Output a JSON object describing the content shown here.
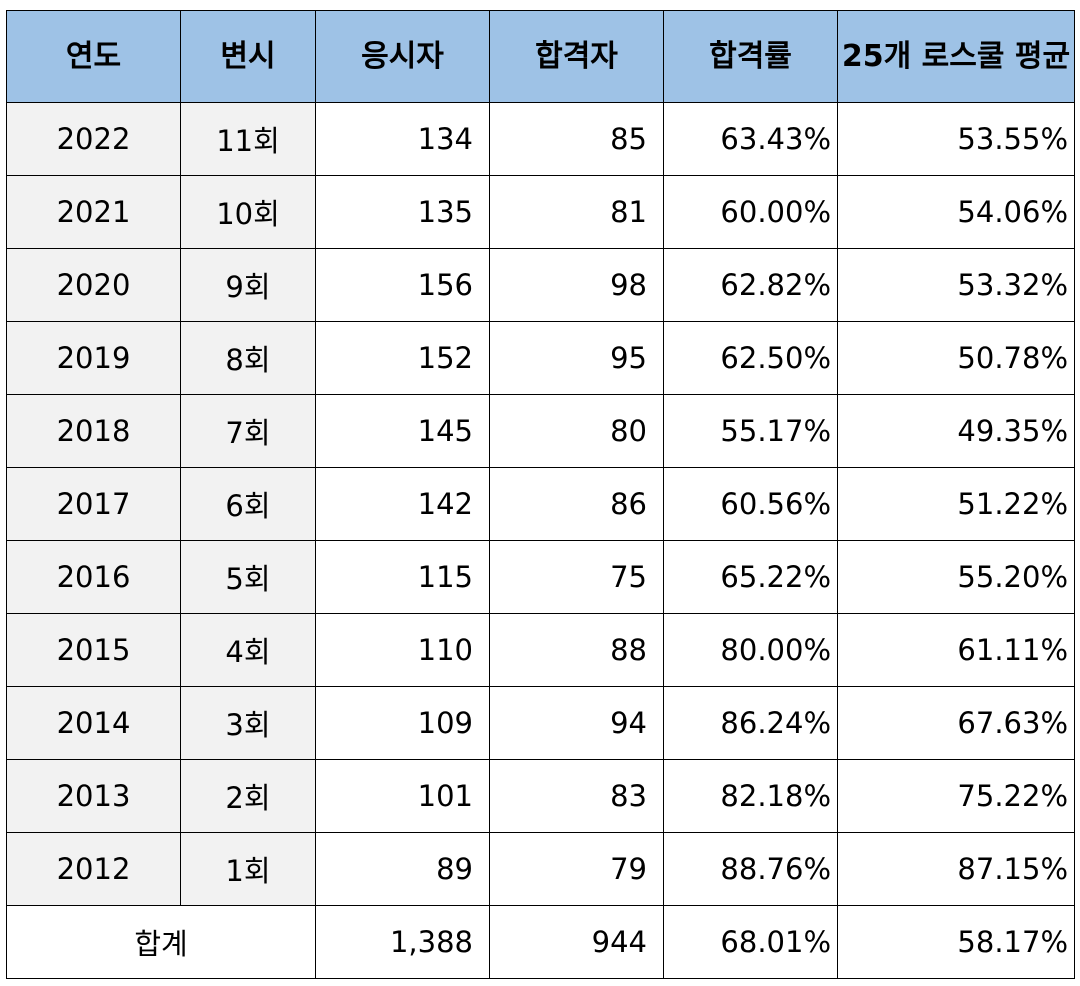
{
  "headers": [
    "연도",
    "변시",
    "응시자",
    "합격자",
    "합격률",
    "25개 로스쿨 평균"
  ],
  "rows": [
    {
      "year": "2022",
      "round": "11회",
      "applicants": "134",
      "passed": "85",
      "rate": "63.43%",
      "avg": "53.55%"
    },
    {
      "year": "2021",
      "round": "10회",
      "applicants": "135",
      "passed": "81",
      "rate": "60.00%",
      "avg": "54.06%"
    },
    {
      "year": "2020",
      "round": "9회",
      "applicants": "156",
      "passed": "98",
      "rate": "62.82%",
      "avg": "53.32%"
    },
    {
      "year": "2019",
      "round": "8회",
      "applicants": "152",
      "passed": "95",
      "rate": "62.50%",
      "avg": "50.78%"
    },
    {
      "year": "2018",
      "round": "7회",
      "applicants": "145",
      "passed": "80",
      "rate": "55.17%",
      "avg": "49.35%"
    },
    {
      "year": "2017",
      "round": "6회",
      "applicants": "142",
      "passed": "86",
      "rate": "60.56%",
      "avg": "51.22%"
    },
    {
      "year": "2016",
      "round": "5회",
      "applicants": "115",
      "passed": "75",
      "rate": "65.22%",
      "avg": "55.20%"
    },
    {
      "year": "2015",
      "round": "4회",
      "applicants": "110",
      "passed": "88",
      "rate": "80.00%",
      "avg": "61.11%"
    },
    {
      "year": "2014",
      "round": "3회",
      "applicants": "109",
      "passed": "94",
      "rate": "86.24%",
      "avg": "67.63%"
    },
    {
      "year": "2013",
      "round": "2회",
      "applicants": "101",
      "passed": "83",
      "rate": "82.18%",
      "avg": "75.22%"
    },
    {
      "year": "2012",
      "round": "1회",
      "applicants": "89",
      "passed": "79",
      "rate": "88.76%",
      "avg": "87.15%"
    }
  ],
  "total": {
    "label": "합계",
    "applicants": "1,388",
    "passed": "944",
    "rate": "68.01%",
    "avg": "58.17%"
  },
  "colors": {
    "header_bg": "#9ec2e6",
    "label_bg": "#f2f2f2",
    "border": "#000000"
  }
}
